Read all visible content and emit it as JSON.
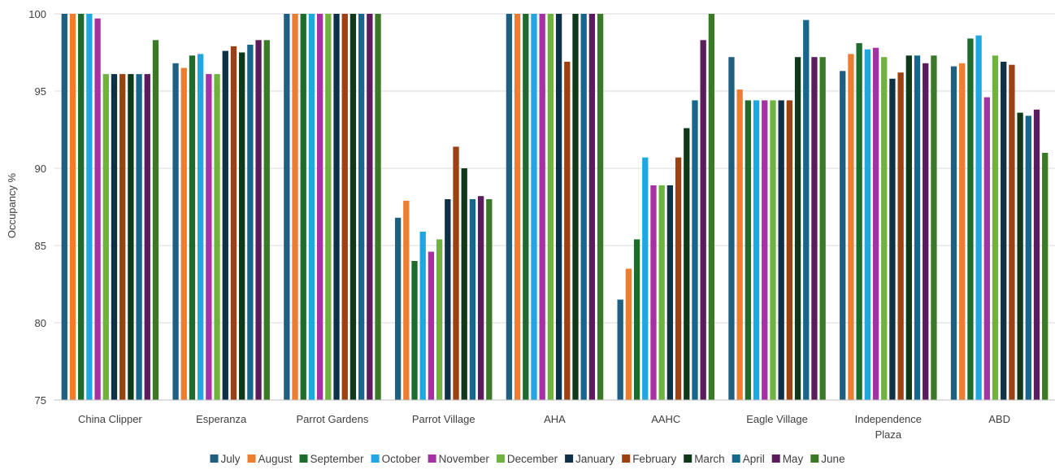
{
  "chart_data": {
    "type": "bar",
    "title": "",
    "xlabel": "",
    "ylabel": "Occupancy %",
    "ylim": [
      75,
      100
    ],
    "yticks": [
      75,
      80,
      85,
      90,
      95,
      100
    ],
    "grid": true,
    "legend_position": "bottom",
    "categories": [
      "China Clipper",
      "Esperanza",
      "Parrot Gardens",
      "Parrot Village",
      "AHA",
      "AAHC",
      "Eagle Village",
      "Independence Plaza",
      "ABD"
    ],
    "series": [
      {
        "name": "July",
        "color": "#1f5f80",
        "values": [
          100,
          96.8,
          100,
          86.8,
          100,
          81.5,
          97.2,
          96.3,
          96.6
        ]
      },
      {
        "name": "August",
        "color": "#ed7d31",
        "values": [
          100,
          96.5,
          100,
          87.9,
          100,
          83.5,
          95.1,
          97.4,
          96.8
        ]
      },
      {
        "name": "September",
        "color": "#1f6b2e",
        "values": [
          100,
          97.3,
          100,
          84.0,
          100,
          85.4,
          94.4,
          98.1,
          98.4
        ]
      },
      {
        "name": "October",
        "color": "#1ea7e1",
        "values": [
          100,
          97.4,
          100,
          85.9,
          100,
          90.7,
          94.4,
          97.7,
          98.6
        ]
      },
      {
        "name": "November",
        "color": "#a531a3",
        "values": [
          99.7,
          96.1,
          100,
          84.6,
          100,
          88.9,
          94.4,
          97.8,
          94.6
        ]
      },
      {
        "name": "December",
        "color": "#6fb33f",
        "values": [
          96.1,
          96.1,
          100,
          85.4,
          100,
          88.9,
          94.4,
          97.2,
          97.3
        ]
      },
      {
        "name": "January",
        "color": "#0f3148",
        "values": [
          96.1,
          97.6,
          100,
          88.0,
          100,
          88.9,
          94.4,
          95.8,
          96.9
        ]
      },
      {
        "name": "February",
        "color": "#9c4212",
        "values": [
          96.1,
          97.9,
          100,
          91.4,
          96.9,
          90.7,
          94.4,
          96.2,
          96.7
        ]
      },
      {
        "name": "March",
        "color": "#10391b",
        "values": [
          96.1,
          97.5,
          100,
          90.0,
          100,
          92.6,
          97.2,
          97.3,
          93.6
        ]
      },
      {
        "name": "April",
        "color": "#17678c",
        "values": [
          96.1,
          98.0,
          100,
          88.0,
          100,
          94.4,
          99.6,
          97.3,
          93.4
        ]
      },
      {
        "name": "May",
        "color": "#5b1b5c",
        "values": [
          96.1,
          98.3,
          100,
          88.2,
          100,
          98.3,
          97.2,
          96.8,
          93.8
        ]
      },
      {
        "name": "June",
        "color": "#3a7a26",
        "values": [
          98.3,
          98.3,
          100,
          88.0,
          100,
          100,
          97.2,
          97.3,
          91.0
        ]
      }
    ]
  }
}
